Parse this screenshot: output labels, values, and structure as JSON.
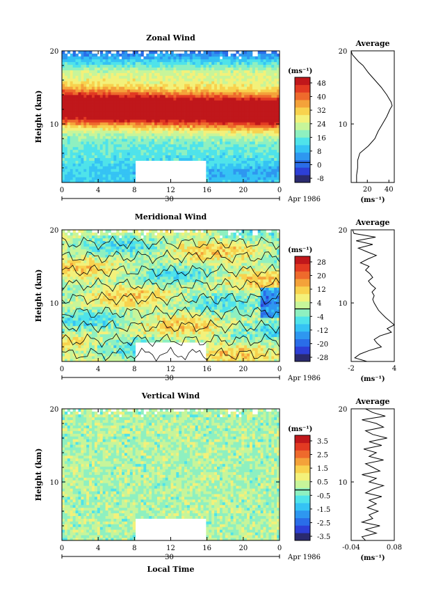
{
  "colors": {
    "zonal_scale": [
      "#2a2a6e",
      "#2d3fd6",
      "#2a6de8",
      "#2e97f0",
      "#35c3f4",
      "#4fe3ea",
      "#8ef0c0",
      "#c7f59a",
      "#f3f17a",
      "#f8d24e",
      "#f4a23a",
      "#ee6a2c",
      "#e23a22",
      "#c0171b"
    ],
    "vert_scale": [
      "#2a2a6e",
      "#2d3fd6",
      "#2a6de8",
      "#2e97f0",
      "#35c3f4",
      "#4fe3ea",
      "#8ef0c0",
      "#c7f59a",
      "#f3f17a",
      "#f8d24e",
      "#f4a23a",
      "#ee6a2c",
      "#e23a22",
      "#c0171b"
    ]
  },
  "chart_data": [
    {
      "type": "heatmap",
      "title": "Zonal Wind",
      "ylabel": "Height (km)",
      "xlim": [
        0,
        24
      ],
      "ylim": [
        2,
        20
      ],
      "x_ticks": [
        "0",
        "4",
        "8",
        "12",
        "16",
        "20",
        "0"
      ],
      "y_ticks": [
        "20",
        "10"
      ],
      "date_axis": {
        "day": "30",
        "month_year": "Apr 1986"
      },
      "colorbar": {
        "unit": "(ms⁻¹)",
        "ticks": [
          "48",
          "40",
          "32",
          "24",
          "16",
          "8",
          "0",
          "-8"
        ],
        "range": [
          -12,
          52
        ]
      },
      "data_gap": {
        "x": [
          8,
          16
        ],
        "y": [
          2,
          5
        ]
      },
      "profile": {
        "title": "Average",
        "xlabel": "(ms⁻¹)",
        "xticks": [
          "20",
          "40"
        ],
        "yticks": [
          "20",
          "10"
        ],
        "xlim": [
          5,
          45
        ],
        "height": [
          2,
          3,
          4,
          5,
          6,
          7,
          8,
          9,
          10,
          11,
          12,
          12.5,
          13,
          14,
          15,
          16,
          17,
          18,
          18.5,
          19,
          19.5,
          20
        ],
        "value": [
          10,
          10,
          11,
          11,
          13,
          21,
          27,
          30,
          34,
          38,
          41,
          43,
          42,
          38,
          33,
          27,
          21,
          16,
          12,
          9,
          6,
          5
        ]
      }
    },
    {
      "type": "heatmap",
      "title": "Meridional Wind",
      "ylabel": "Height (km)",
      "xlim": [
        0,
        24
      ],
      "ylim": [
        2,
        20
      ],
      "x_ticks": [
        "0",
        "4",
        "8",
        "12",
        "16",
        "20",
        "0"
      ],
      "y_ticks": [
        "20",
        "10"
      ],
      "date_axis": {
        "day": "30",
        "month_year": "Apr 1986"
      },
      "colorbar": {
        "unit": "(ms⁻¹)",
        "ticks": [
          "28",
          "20",
          "12",
          "4",
          "-4",
          "-12",
          "-20",
          "-28"
        ],
        "range": [
          -30,
          30
        ]
      },
      "data_gap": {
        "x": [
          8,
          16
        ],
        "y": [
          2,
          4.5
        ]
      },
      "profile": {
        "title": "Average",
        "xlabel": "(ms⁻¹)",
        "xticks": [
          "-2",
          "4"
        ],
        "yticks": [
          "20",
          "10"
        ],
        "xlim": [
          -2,
          4
        ],
        "height": [
          2,
          2.5,
          3,
          3.5,
          4,
          4.5,
          5,
          5.5,
          6,
          6.5,
          7,
          7.5,
          8,
          8.5,
          9,
          9.5,
          10,
          10.5,
          11,
          11.5,
          12,
          12.5,
          13,
          13.5,
          14,
          14.5,
          15,
          15.5,
          16,
          16.5,
          17,
          17.5,
          18,
          18.5,
          19,
          19.5,
          20
        ],
        "value": [
          0.2,
          -1.5,
          -0.8,
          0.5,
          2.2,
          1.6,
          1.2,
          2.0,
          3.6,
          3.0,
          4.0,
          3.4,
          2.8,
          2.3,
          1.8,
          1.5,
          1.2,
          1.0,
          1.2,
          0.9,
          1.4,
          0.8,
          0.4,
          1.0,
          0.6,
          0.0,
          0.5,
          -0.7,
          0.3,
          1.5,
          0.2,
          -1.0,
          1.0,
          -1.3,
          1.4,
          -1.6,
          -1.8
        ]
      }
    },
    {
      "type": "heatmap",
      "title": "Vertical Wind",
      "ylabel": "Height (km)",
      "xlabel": "Local Time",
      "xlim": [
        0,
        24
      ],
      "ylim": [
        2,
        20
      ],
      "x_ticks": [
        "0",
        "4",
        "8",
        "12",
        "16",
        "20",
        "0"
      ],
      "y_ticks": [
        "20",
        "10"
      ],
      "date_axis": {
        "day": "30",
        "month_year": "Apr 1986"
      },
      "colorbar": {
        "unit": "(ms⁻¹)",
        "ticks": [
          "3.5",
          "2.5",
          "1.5",
          "0.5",
          "-0.5",
          "-1.5",
          "-2.5",
          "-3.5"
        ],
        "range": [
          -4,
          4
        ]
      },
      "data_gap": {
        "x": [
          8,
          16
        ],
        "y": [
          2,
          5
        ]
      },
      "profile": {
        "title": "Average",
        "xlabel": "(ms⁻¹)",
        "xticks": [
          "-0.04",
          "0.08"
        ],
        "yticks": [
          "20",
          "10"
        ],
        "xlim": [
          -0.04,
          0.08
        ],
        "height": [
          2,
          2.5,
          3,
          3.5,
          4,
          4.5,
          5,
          5.5,
          6,
          6.5,
          7,
          7.5,
          8,
          8.5,
          9,
          9.5,
          10,
          10.5,
          11,
          11.5,
          12,
          12.5,
          13,
          13.5,
          14,
          14.5,
          15,
          15.5,
          16,
          16.5,
          17,
          17.5,
          18,
          18.5,
          19,
          19.5,
          20
        ],
        "value": [
          0.0,
          -0.01,
          0.03,
          0.0,
          0.04,
          -0.01,
          0.02,
          0.01,
          0.035,
          0.005,
          0.03,
          0.01,
          0.045,
          0.0,
          0.02,
          0.05,
          0.01,
          0.03,
          -0.01,
          0.04,
          0.02,
          0.0,
          0.05,
          0.01,
          0.03,
          -0.005,
          0.045,
          0.01,
          0.06,
          0.02,
          0.0,
          0.05,
          0.03,
          -0.01,
          0.055,
          0.02,
          0.0
        ]
      }
    }
  ]
}
